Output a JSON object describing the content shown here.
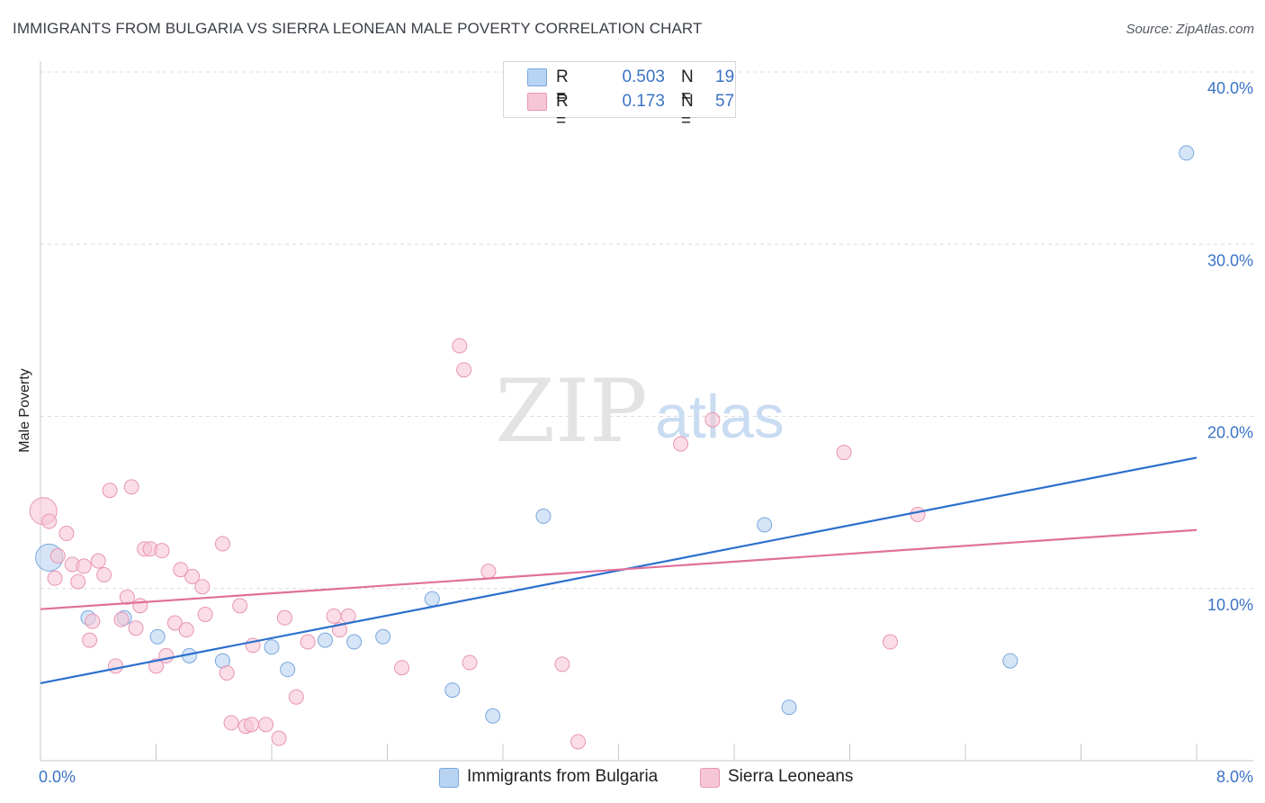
{
  "header": {
    "title": "IMMIGRANTS FROM BULGARIA VS SIERRA LEONEAN MALE POVERTY CORRELATION CHART",
    "source": "Source: ZipAtlas.com"
  },
  "watermark": {
    "zip": "ZIP",
    "atlas": "atlas"
  },
  "colors": {
    "blue_fill": "#b9d3f2",
    "blue_stroke": "#7aa7dd",
    "blue_line": "#2c6fcd",
    "pink_fill": "#f7c6d6",
    "pink_stroke": "#e995b3",
    "pink_line": "#e0709a",
    "tick_label": "#3b73c5",
    "grid": "#dcdcdc"
  },
  "legend": {
    "rows": [
      {
        "series": "blue",
        "r_label": "R =",
        "r_value": "0.503",
        "n_label": "N =",
        "n_value": "19"
      },
      {
        "series": "pink",
        "r_label": "R =",
        "r_value": "0.173",
        "n_label": "N =",
        "n_value": "57"
      }
    ]
  },
  "chart_data": {
    "type": "scatter",
    "title": "IMMIGRANTS FROM BULGARIA VS SIERRA LEONEAN MALE POVERTY CORRELATION CHART",
    "xlabel": "",
    "ylabel": "Male Poverty",
    "xlim": [
      0,
      8
    ],
    "ylim": [
      0,
      40
    ],
    "x_tick_labels": [
      {
        "value": 0,
        "label": "0.0%"
      },
      {
        "value": 8,
        "label": "8.0%"
      }
    ],
    "y_tick_labels": [
      {
        "value": 10,
        "label": "10.0%"
      },
      {
        "value": 20,
        "label": "20.0%"
      },
      {
        "value": 30,
        "label": "30.0%"
      },
      {
        "value": 40,
        "label": "40.0%"
      }
    ],
    "grid": true,
    "legend_position": "top-center",
    "series": [
      {
        "name": "Immigrants from Bulgaria",
        "color": "blue",
        "points": [
          {
            "x": 0.06,
            "y": 11.8,
            "large": true
          },
          {
            "x": 0.33,
            "y": 8.3
          },
          {
            "x": 0.58,
            "y": 8.3
          },
          {
            "x": 0.81,
            "y": 7.2
          },
          {
            "x": 1.03,
            "y": 6.1
          },
          {
            "x": 1.26,
            "y": 5.8
          },
          {
            "x": 1.6,
            "y": 6.6
          },
          {
            "x": 1.71,
            "y": 5.3
          },
          {
            "x": 1.97,
            "y": 7.0
          },
          {
            "x": 2.17,
            "y": 6.9
          },
          {
            "x": 2.37,
            "y": 7.2
          },
          {
            "x": 2.71,
            "y": 9.4
          },
          {
            "x": 2.85,
            "y": 4.1
          },
          {
            "x": 3.13,
            "y": 2.6
          },
          {
            "x": 3.48,
            "y": 14.2
          },
          {
            "x": 5.01,
            "y": 13.7
          },
          {
            "x": 5.18,
            "y": 3.1
          },
          {
            "x": 6.71,
            "y": 5.8
          },
          {
            "x": 7.93,
            "y": 35.3
          }
        ],
        "trendline": {
          "x": [
            0,
            8
          ],
          "y": [
            4.5,
            17.6
          ]
        }
      },
      {
        "name": "Sierra Leoneans",
        "color": "pink",
        "points": [
          {
            "x": 0.02,
            "y": 14.5,
            "large": true
          },
          {
            "x": 0.06,
            "y": 13.9
          },
          {
            "x": 0.1,
            "y": 10.6
          },
          {
            "x": 0.12,
            "y": 11.9
          },
          {
            "x": 0.18,
            "y": 13.2
          },
          {
            "x": 0.22,
            "y": 11.4
          },
          {
            "x": 0.26,
            "y": 10.4
          },
          {
            "x": 0.3,
            "y": 11.3
          },
          {
            "x": 0.34,
            "y": 7.0
          },
          {
            "x": 0.36,
            "y": 8.1
          },
          {
            "x": 0.4,
            "y": 11.6
          },
          {
            "x": 0.44,
            "y": 10.8
          },
          {
            "x": 0.48,
            "y": 15.7
          },
          {
            "x": 0.52,
            "y": 5.5
          },
          {
            "x": 0.56,
            "y": 8.2
          },
          {
            "x": 0.6,
            "y": 9.5
          },
          {
            "x": 0.63,
            "y": 15.9
          },
          {
            "x": 0.66,
            "y": 7.7
          },
          {
            "x": 0.69,
            "y": 9.0
          },
          {
            "x": 0.72,
            "y": 12.3
          },
          {
            "x": 0.76,
            "y": 12.3
          },
          {
            "x": 0.8,
            "y": 5.5
          },
          {
            "x": 0.84,
            "y": 12.2
          },
          {
            "x": 0.87,
            "y": 6.1
          },
          {
            "x": 0.93,
            "y": 8.0
          },
          {
            "x": 0.97,
            "y": 11.1
          },
          {
            "x": 1.01,
            "y": 7.6
          },
          {
            "x": 1.05,
            "y": 10.7
          },
          {
            "x": 1.12,
            "y": 10.1
          },
          {
            "x": 1.14,
            "y": 8.5
          },
          {
            "x": 1.26,
            "y": 12.6
          },
          {
            "x": 1.29,
            "y": 5.1
          },
          {
            "x": 1.32,
            "y": 2.2
          },
          {
            "x": 1.38,
            "y": 9.0
          },
          {
            "x": 1.42,
            "y": 2.0
          },
          {
            "x": 1.46,
            "y": 2.1
          },
          {
            "x": 1.47,
            "y": 6.7
          },
          {
            "x": 1.56,
            "y": 2.1
          },
          {
            "x": 1.65,
            "y": 1.3
          },
          {
            "x": 1.69,
            "y": 8.3
          },
          {
            "x": 1.77,
            "y": 3.7
          },
          {
            "x": 1.85,
            "y": 6.9
          },
          {
            "x": 2.03,
            "y": 8.4
          },
          {
            "x": 2.07,
            "y": 7.6
          },
          {
            "x": 2.13,
            "y": 8.4
          },
          {
            "x": 2.5,
            "y": 5.4
          },
          {
            "x": 2.9,
            "y": 24.1
          },
          {
            "x": 2.93,
            "y": 22.7
          },
          {
            "x": 2.97,
            "y": 5.7
          },
          {
            "x": 3.1,
            "y": 11.0
          },
          {
            "x": 3.61,
            "y": 5.6
          },
          {
            "x": 3.72,
            "y": 1.1
          },
          {
            "x": 4.43,
            "y": 18.4
          },
          {
            "x": 4.65,
            "y": 19.8
          },
          {
            "x": 5.56,
            "y": 17.9
          },
          {
            "x": 5.88,
            "y": 6.9
          },
          {
            "x": 6.07,
            "y": 14.3
          }
        ],
        "trendline": {
          "x": [
            0,
            8
          ],
          "y": [
            8.8,
            13.4
          ]
        }
      }
    ]
  }
}
